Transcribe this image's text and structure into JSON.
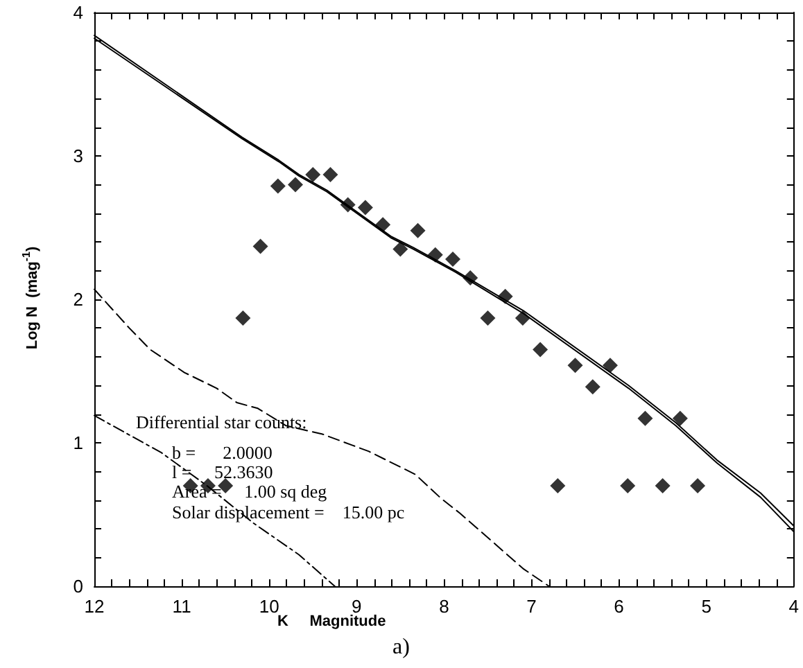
{
  "chart_data": {
    "type": "scatter",
    "xlabel": "K     Magnitude",
    "ylabel": "Log N  (mag$^{-1}$)",
    "xlim": [
      12,
      4
    ],
    "ylim": [
      0,
      4
    ],
    "xticks": [
      12,
      {
        "value": 11.8,
        "label": null
      },
      {
        "value": 11.6,
        "label": null
      },
      {
        "value": 11.4,
        "label": null
      },
      {
        "value": 11.2,
        "label": null
      },
      11,
      {
        "value": 10.8,
        "label": null
      },
      {
        "value": 10.6,
        "label": null
      },
      {
        "value": 10.4,
        "label": null
      },
      {
        "value": 10.2,
        "label": null
      },
      10,
      {
        "value": 9.8,
        "label": null
      },
      {
        "value": 9.6,
        "label": null
      },
      {
        "value": 9.4,
        "label": null
      },
      {
        "value": 9.2,
        "label": null
      },
      9,
      {
        "value": 8.8,
        "label": null
      },
      {
        "value": 8.6,
        "label": null
      },
      {
        "value": 8.4,
        "label": null
      },
      {
        "value": 8.2,
        "label": null
      },
      8,
      {
        "value": 7.8,
        "label": null
      },
      {
        "value": 7.6,
        "label": null
      },
      {
        "value": 7.4,
        "label": null
      },
      {
        "value": 7.2,
        "label": null
      },
      7,
      {
        "value": 6.8,
        "label": null
      },
      {
        "value": 6.6,
        "label": null
      },
      {
        "value": 6.4,
        "label": null
      },
      {
        "value": 6.2,
        "label": null
      },
      6,
      {
        "value": 5.8,
        "label": null
      },
      {
        "value": 5.6,
        "label": null
      },
      {
        "value": 5.4,
        "label": null
      },
      {
        "value": 5.2,
        "label": null
      },
      5,
      {
        "value": 4.8,
        "label": null
      },
      {
        "value": 4.6,
        "label": null
      },
      {
        "value": 4.4,
        "label": null
      },
      {
        "value": 4.2,
        "label": null
      },
      4
    ],
    "yticks": [
      0,
      {
        "value": 0.2,
        "label": null
      },
      {
        "value": 0.4,
        "label": null
      },
      {
        "value": 0.6,
        "label": null
      },
      {
        "value": 0.8,
        "label": null
      },
      1,
      {
        "value": 1.2,
        "label": null
      },
      {
        "value": 1.4,
        "label": null
      },
      {
        "value": 1.6,
        "label": null
      },
      {
        "value": 1.8,
        "label": null
      },
      2,
      {
        "value": 2.2,
        "label": null
      },
      {
        "value": 2.4,
        "label": null
      },
      {
        "value": 2.6,
        "label": null
      },
      {
        "value": 2.8,
        "label": null
      },
      3,
      {
        "value": 3.2,
        "label": null
      },
      {
        "value": 3.4,
        "label": null
      },
      {
        "value": 3.6,
        "label": null
      },
      {
        "value": 3.8,
        "label": null
      },
      4
    ],
    "grid": false,
    "series": [
      {
        "marker": "diamond",
        "color": "#000000",
        "x": [
          10.9,
          10.7,
          10.5,
          10.3,
          10.1,
          9.9,
          9.7,
          9.5,
          9.3,
          9.1,
          8.9,
          8.7,
          8.5,
          8.3,
          8.1,
          7.9,
          7.7,
          7.5,
          7.3,
          7.1,
          6.9,
          6.7,
          6.5,
          6.3,
          6.1,
          5.9,
          5.7,
          5.5,
          5.3,
          5.1
        ],
        "values": [
          0.7,
          0.7,
          0.7,
          1.87,
          2.37,
          2.79,
          2.8,
          2.87,
          2.87,
          2.66,
          2.64,
          2.52,
          2.35,
          2.48,
          2.31,
          2.28,
          2.15,
          1.87,
          2.02,
          1.87,
          1.65,
          0.7,
          1.54,
          1.39,
          1.54,
          0.7,
          1.17,
          0.7,
          1.17,
          0.7
        ]
      },
      {
        "type": "line",
        "color": "#000000",
        "line_style": "solid",
        "marker": "none",
        "x": [
          12,
          10.31,
          9.89,
          9.66,
          9.34,
          8.61,
          8.35,
          7.87,
          7.09,
          5.89,
          5.35,
          4.88,
          4.38,
          4
        ],
        "values": [
          3.82,
          3.12,
          2.96,
          2.86,
          2.75,
          2.43,
          2.35,
          2.19,
          1.9,
          1.38,
          1.12,
          0.86,
          0.62,
          0.38
        ]
      },
      {
        "type": "line",
        "color": "#000000",
        "line_style": "solid",
        "marker": "none",
        "x": [
          12,
          10.31,
          9.89,
          9.66,
          9.34,
          8.61,
          8.35,
          7.87,
          7.09,
          5.89,
          5.35,
          4.88,
          4.38,
          4
        ],
        "values": [
          3.84,
          3.13,
          2.97,
          2.87,
          2.76,
          2.44,
          2.36,
          2.2,
          1.92,
          1.4,
          1.14,
          0.88,
          0.65,
          0.42
        ]
      },
      {
        "type": "line",
        "color": "#000000",
        "line_style": "dashed",
        "marker": "none",
        "x": [
          12,
          11.6,
          11.36,
          10.97,
          10.6,
          10.37,
          10.13,
          9.81,
          9.39,
          8.86,
          8.33,
          8.03,
          7.82,
          7.09,
          6.8
        ],
        "values": [
          2.07,
          1.8,
          1.65,
          1.49,
          1.38,
          1.28,
          1.24,
          1.12,
          1.06,
          0.94,
          0.78,
          0.61,
          0.51,
          0.12,
          0
        ]
      },
      {
        "type": "line",
        "color": "#000000",
        "line_style": "dotted",
        "marker": "none",
        "x": [
          12,
          11.23,
          10.71,
          10.18,
          9.66,
          9.25
        ],
        "values": [
          1.19,
          0.93,
          0.7,
          0.44,
          0.22,
          0
        ]
      }
    ],
    "annotations": [
      "Differential star counts:",
      "b =      2.0000",
      "l =     52.3630",
      "Area =     1.00 sq deg",
      "Solar displacement =    15.00 pc",
      "a)"
    ]
  }
}
